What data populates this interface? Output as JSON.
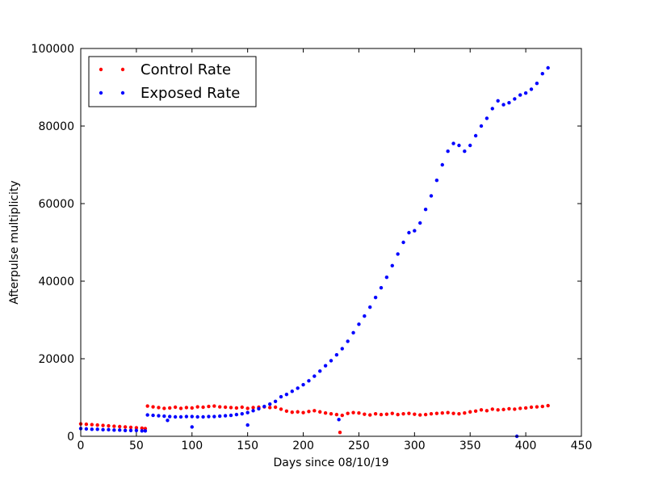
{
  "chart_data": {
    "type": "scatter",
    "xlabel": "Days since 08/10/19",
    "ylabel": "Afterpulse multiplicity",
    "xlim": [
      0,
      450
    ],
    "ylim": [
      0,
      100000
    ],
    "xticks": [
      0,
      50,
      100,
      150,
      200,
      250,
      300,
      350,
      400,
      450
    ],
    "yticks": [
      0,
      20000,
      40000,
      60000,
      80000,
      100000
    ],
    "xtick_labels": [
      "0",
      "50",
      "100",
      "150",
      "200",
      "250",
      "300",
      "350",
      "400",
      "450"
    ],
    "ytick_labels": [
      "0",
      "20000",
      "40000",
      "60000",
      "80000",
      "100000"
    ],
    "grid": false,
    "legend_position": "top-left",
    "series": [
      {
        "name": "Control Rate",
        "color": "#ff0000",
        "x": [
          0,
          5,
          10,
          15,
          20,
          25,
          30,
          35,
          40,
          45,
          50,
          55,
          58,
          60,
          65,
          70,
          75,
          80,
          85,
          90,
          95,
          100,
          105,
          110,
          115,
          120,
          125,
          130,
          135,
          140,
          145,
          150,
          155,
          160,
          165,
          170,
          175,
          180,
          185,
          190,
          195,
          200,
          205,
          210,
          215,
          220,
          225,
          230,
          233,
          235,
          240,
          245,
          250,
          255,
          260,
          265,
          270,
          275,
          280,
          285,
          290,
          295,
          300,
          305,
          310,
          315,
          320,
          325,
          330,
          335,
          340,
          345,
          350,
          355,
          360,
          365,
          370,
          375,
          380,
          385,
          390,
          395,
          400,
          405,
          410,
          415,
          420
        ],
        "y": [
          3200,
          3100,
          3000,
          2900,
          2800,
          2700,
          2600,
          2500,
          2400,
          2300,
          2200,
          2100,
          2000,
          7800,
          7600,
          7400,
          7200,
          7300,
          7500,
          7200,
          7400,
          7300,
          7600,
          7500,
          7700,
          7800,
          7600,
          7500,
          7400,
          7300,
          7500,
          7200,
          7400,
          7500,
          7600,
          7400,
          7500,
          7000,
          6500,
          6200,
          6300,
          6100,
          6400,
          6600,
          6300,
          6000,
          5800,
          5600,
          1000,
          5400,
          5900,
          6100,
          6000,
          5700,
          5500,
          5800,
          5600,
          5700,
          5900,
          5600,
          5800,
          5900,
          5700,
          5500,
          5600,
          5800,
          5900,
          6000,
          6100,
          5900,
          5800,
          6000,
          6300,
          6500,
          6800,
          6600,
          7000,
          6800,
          6900,
          7100,
          7000,
          7200,
          7300,
          7500,
          7600,
          7700,
          7900
        ]
      },
      {
        "name": "Exposed Rate",
        "color": "#0000ff",
        "x": [
          0,
          5,
          10,
          15,
          20,
          25,
          30,
          35,
          40,
          45,
          50,
          55,
          58,
          60,
          65,
          70,
          75,
          78,
          80,
          85,
          90,
          95,
          100,
          105,
          110,
          115,
          120,
          125,
          130,
          135,
          140,
          145,
          150,
          155,
          160,
          165,
          170,
          175,
          180,
          185,
          190,
          195,
          200,
          205,
          210,
          215,
          220,
          225,
          230,
          235,
          240,
          245,
          250,
          255,
          260,
          265,
          270,
          275,
          280,
          285,
          290,
          295,
          300,
          305,
          310,
          315,
          320,
          325,
          330,
          335,
          340,
          345,
          350,
          355,
          360,
          365,
          370,
          375,
          380,
          385,
          390,
          395,
          400,
          405,
          410,
          415,
          420,
          100,
          150,
          232,
          392
        ],
        "y": [
          2000,
          1900,
          1800,
          1800,
          1700,
          1700,
          1600,
          1600,
          1500,
          1500,
          1500,
          1400,
          1400,
          5500,
          5400,
          5300,
          5200,
          4100,
          5100,
          5000,
          5000,
          5100,
          5100,
          5000,
          5000,
          5100,
          5100,
          5200,
          5300,
          5400,
          5600,
          5800,
          6100,
          6600,
          7100,
          7700,
          8300,
          9000,
          10200,
          10800,
          11600,
          12400,
          13300,
          14300,
          15500,
          16800,
          18200,
          19500,
          21000,
          22600,
          24500,
          26700,
          28900,
          31000,
          33300,
          35800,
          38300,
          41000,
          44000,
          47000,
          50000,
          52500,
          53000,
          55000,
          58500,
          62000,
          66000,
          70000,
          73500,
          75500,
          75000,
          73500,
          75000,
          77500,
          80000,
          82000,
          84500,
          86500,
          85500,
          86000,
          87000,
          88000,
          88500,
          89500,
          91000,
          93500,
          95000,
          2400,
          2900,
          4300,
          0
        ]
      }
    ]
  }
}
